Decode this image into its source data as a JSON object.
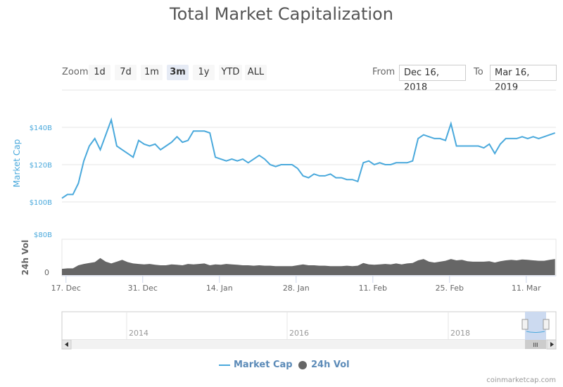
{
  "title": "Total Market Capitalization",
  "zoom": {
    "label": "Zoom",
    "buttons": [
      "1d",
      "7d",
      "1m",
      "3m",
      "1y",
      "YTD",
      "ALL"
    ],
    "selected": "3m"
  },
  "range": {
    "from_label": "From",
    "from": "Dec 16, 2018",
    "to_label": "To",
    "to": "Mar 16, 2019"
  },
  "legend": {
    "market_cap": "Market Cap",
    "vol": "24h Vol"
  },
  "credit": "coinmarketcap.com",
  "colors": {
    "market_cap": "#4aa9dc",
    "vol": "#666666",
    "nav_select": "#ccdaf0"
  },
  "chart_data": {
    "type": "line",
    "start_date": "2018-12-16",
    "end_date": "2019-03-16",
    "x_ticks": [
      "17. Dec",
      "31. Dec",
      "14. Jan",
      "28. Jan",
      "11. Feb",
      "25. Feb",
      "11. Mar"
    ],
    "y_label": "Market Cap",
    "y_ticks": [
      "$100B",
      "$120B",
      "$140B"
    ],
    "ylim_billion": [
      100,
      160
    ],
    "vol_label": "24h Vol",
    "vol_ticks": [
      "0",
      "$80B"
    ],
    "vol_ylim_billion": [
      0,
      80
    ],
    "navigator_ticks": [
      "2014",
      "2016",
      "2018"
    ],
    "series": [
      {
        "name": "Market Cap",
        "unit": "billion USD",
        "values": [
          102,
          104,
          104,
          110,
          122,
          130,
          134,
          128,
          136,
          144,
          130,
          128,
          126,
          124,
          133,
          131,
          130,
          131,
          128,
          130,
          132,
          135,
          132,
          133,
          138,
          138,
          138,
          137,
          124,
          123,
          122,
          123,
          122,
          123,
          121,
          123,
          125,
          123,
          120,
          119,
          120,
          120,
          120,
          118,
          114,
          113,
          115,
          114,
          114,
          115,
          113,
          113,
          112,
          112,
          111,
          121,
          122,
          120,
          121,
          120,
          120,
          121,
          121,
          121,
          122,
          134,
          136,
          135,
          134,
          134,
          133,
          142,
          130,
          130,
          130,
          130,
          130,
          129,
          131,
          126,
          131,
          134,
          134,
          134,
          135,
          134,
          135,
          134,
          135,
          136,
          137
        ]
      },
      {
        "name": "24h Vol",
        "unit": "billion USD",
        "values": [
          14,
          15,
          15,
          22,
          25,
          27,
          29,
          38,
          30,
          26,
          30,
          34,
          29,
          26,
          25,
          24,
          25,
          23,
          22,
          22,
          24,
          23,
          22,
          25,
          24,
          25,
          26,
          22,
          24,
          23,
          25,
          24,
          23,
          22,
          22,
          21,
          22,
          21,
          21,
          20,
          20,
          20,
          20,
          22,
          24,
          22,
          22,
          21,
          21,
          20,
          20,
          20,
          21,
          20,
          21,
          27,
          24,
          23,
          24,
          25,
          24,
          26,
          24,
          26,
          27,
          33,
          36,
          30,
          28,
          30,
          32,
          36,
          33,
          34,
          31,
          30,
          30,
          30,
          31,
          28,
          31,
          33,
          34,
          33,
          35,
          34,
          33,
          32,
          32,
          34,
          36
        ]
      }
    ]
  }
}
